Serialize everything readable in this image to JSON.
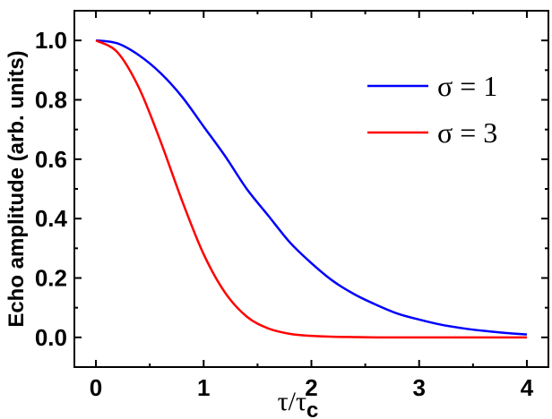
{
  "chart_data": {
    "type": "line",
    "ylabel": "Echo amplitude (arb. units)",
    "xlabel": {
      "num": "τ/τ",
      "sub": "c"
    },
    "xlim": [
      -0.2,
      4.2
    ],
    "ylim": [
      -0.1,
      1.1
    ],
    "xticks": [
      "0",
      "1",
      "2",
      "3",
      "4"
    ],
    "yticks": [
      "0.0",
      "0.2",
      "0.4",
      "0.6",
      "0.8",
      "1.0"
    ],
    "legend_position": "upper-right",
    "series": [
      {
        "name": "σ = 1",
        "color": "#0000ff",
        "x": [
          0,
          0.2,
          0.4,
          0.6,
          0.8,
          1.0,
          1.2,
          1.4,
          1.6,
          1.8,
          2.0,
          2.2,
          2.4,
          2.6,
          2.8,
          3.0,
          3.2,
          3.4,
          3.6,
          3.8,
          4.0
        ],
        "y": [
          1.0,
          0.99,
          0.95,
          0.89,
          0.81,
          0.71,
          0.61,
          0.5,
          0.41,
          0.32,
          0.25,
          0.19,
          0.145,
          0.11,
          0.08,
          0.06,
          0.043,
          0.031,
          0.022,
          0.015,
          0.01
        ]
      },
      {
        "name": "σ = 3",
        "color": "#ff0000",
        "x": [
          0,
          0.2,
          0.4,
          0.6,
          0.8,
          1.0,
          1.2,
          1.4,
          1.6,
          1.8,
          2.0,
          2.2,
          2.4,
          2.6,
          2.8,
          3.0,
          3.2,
          3.4,
          3.6,
          3.8,
          4.0
        ],
        "y": [
          1.0,
          0.96,
          0.84,
          0.66,
          0.46,
          0.28,
          0.15,
          0.07,
          0.03,
          0.012,
          0.005,
          0.002,
          0.001,
          0.0,
          0.0,
          0.0,
          0.0,
          0.0,
          0.0,
          0.0,
          0.0
        ]
      }
    ]
  }
}
